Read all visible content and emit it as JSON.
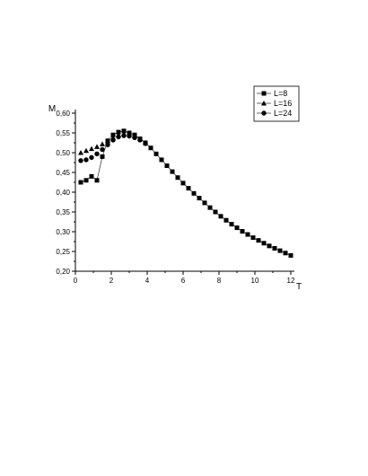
{
  "chart_data": {
    "type": "scatter",
    "xlabel": "T",
    "ylabel": "M",
    "xlim": [
      0,
      12
    ],
    "ylim": [
      0.2,
      0.6
    ],
    "xticks": [
      "0",
      "2",
      "4",
      "6",
      "8",
      "10",
      "12"
    ],
    "yticks": [
      "0,20",
      "0,25",
      "0,30",
      "0,35",
      "0,40",
      "0,45",
      "0,50",
      "0,55",
      "0,60"
    ],
    "legend_position": "top-right",
    "grid": false,
    "series": [
      {
        "name": "L=8",
        "marker": "square",
        "connected": true,
        "x": [
          0.3,
          0.6,
          0.9,
          1.2,
          1.5,
          1.8,
          2.1,
          2.4,
          2.7,
          3.0,
          3.3,
          3.6,
          3.9,
          4.2,
          4.5,
          4.8,
          5.1,
          5.4,
          5.7,
          6.0,
          6.3,
          6.6,
          6.9,
          7.2,
          7.5,
          7.8,
          8.1,
          8.4,
          8.7,
          9.0,
          9.3,
          9.6,
          9.9,
          10.2,
          10.5,
          10.8,
          11.1,
          11.4,
          11.7,
          12.0
        ],
        "y": [
          0.425,
          0.43,
          0.44,
          0.43,
          0.49,
          0.53,
          0.545,
          0.552,
          0.555,
          0.55,
          0.545,
          0.535,
          0.525,
          0.512,
          0.497,
          0.482,
          0.467,
          0.452,
          0.437,
          0.423,
          0.41,
          0.397,
          0.385,
          0.373,
          0.361,
          0.35,
          0.339,
          0.329,
          0.319,
          0.31,
          0.301,
          0.293,
          0.285,
          0.278,
          0.271,
          0.264,
          0.258,
          0.252,
          0.246,
          0.24
        ]
      },
      {
        "name": "L=16",
        "marker": "triangle",
        "connected": false,
        "x": [
          0.3,
          0.6,
          0.9,
          1.2,
          1.5,
          1.8,
          2.1,
          2.4,
          2.7,
          3.0,
          3.3,
          3.6,
          3.9
        ],
        "y": [
          0.5,
          0.505,
          0.51,
          0.515,
          0.522,
          0.53,
          0.538,
          0.545,
          0.548,
          0.547,
          0.543,
          0.535,
          0.525
        ]
      },
      {
        "name": "L=24",
        "marker": "circle",
        "connected": false,
        "x": [
          0.3,
          0.6,
          0.9,
          1.2,
          1.5,
          1.8,
          2.1,
          2.4,
          2.7,
          3.0,
          3.3,
          3.6,
          3.9
        ],
        "y": [
          0.48,
          0.482,
          0.488,
          0.497,
          0.508,
          0.52,
          0.532,
          0.54,
          0.543,
          0.542,
          0.538,
          0.532,
          0.523
        ]
      }
    ]
  }
}
